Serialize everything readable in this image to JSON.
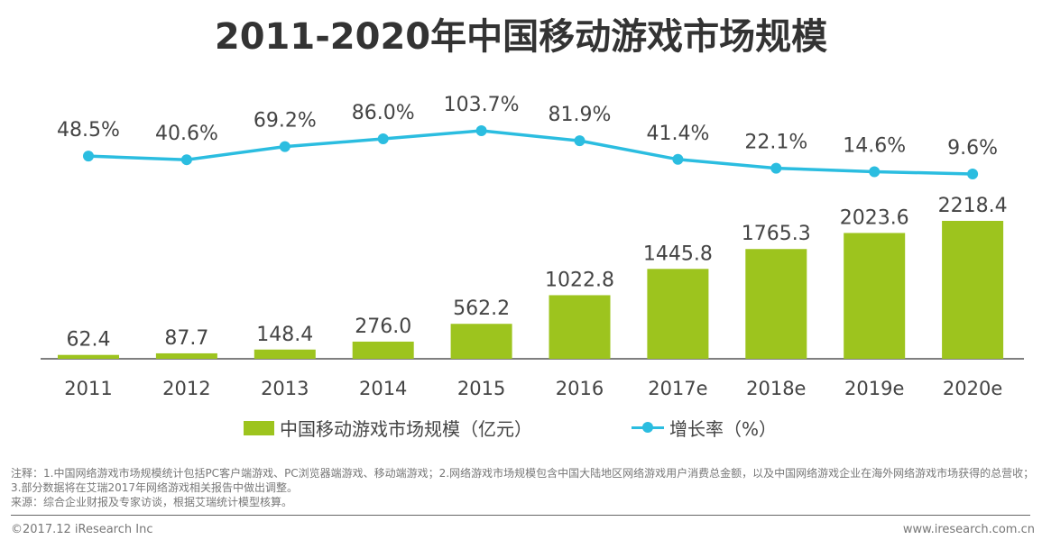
{
  "chart_data": {
    "type": "bar+line",
    "title": "2011-2020年中国移动游戏市场规模",
    "categories": [
      "2011",
      "2012",
      "2013",
      "2014",
      "2015",
      "2016",
      "2017e",
      "2018e",
      "2019e",
      "2020e"
    ],
    "series": [
      {
        "name": "中国移动游戏市场规模（亿元）",
        "type": "bar",
        "values": [
          62.4,
          87.7,
          148.4,
          276.0,
          562.2,
          1022.8,
          1445.8,
          1765.3,
          2023.6,
          2218.4
        ],
        "labels": [
          "62.4",
          "87.7",
          "148.4",
          "276.0",
          "562.2",
          "1022.8",
          "1445.8",
          "1765.3",
          "2023.6",
          "2218.4"
        ],
        "color": "#9dc41e"
      },
      {
        "name": "增长率（%）",
        "type": "line",
        "values": [
          48.5,
          40.6,
          69.2,
          86.0,
          103.7,
          81.9,
          41.4,
          22.1,
          14.6,
          9.6
        ],
        "labels": [
          "48.5%",
          "40.6%",
          "69.2%",
          "86.0%",
          "103.7%",
          "81.9%",
          "41.4%",
          "22.1%",
          "14.6%",
          "9.6%"
        ],
        "color": "#2bbde0"
      }
    ],
    "legend": "bottom",
    "grid": false
  },
  "notes": [
    "注释：1.中国网络游戏市场规模统计包括PC客户端游戏、PC浏览器端游戏、移动端游戏；2.网络游戏市场规模包含中国大陆地区网络游戏用户消费总金额，以及中国网络游戏企业在海外网络游戏市场获得的总营收；3.部分数据将在艾瑞2017年网络游戏相关报告中做出调整。",
    "来源：综合企业财报及专家访谈，根据艾瑞统计模型核算。"
  ],
  "footer": {
    "copyright": "©2017.12 iResearch Inc",
    "website": "www.iresearch.com.cn"
  }
}
